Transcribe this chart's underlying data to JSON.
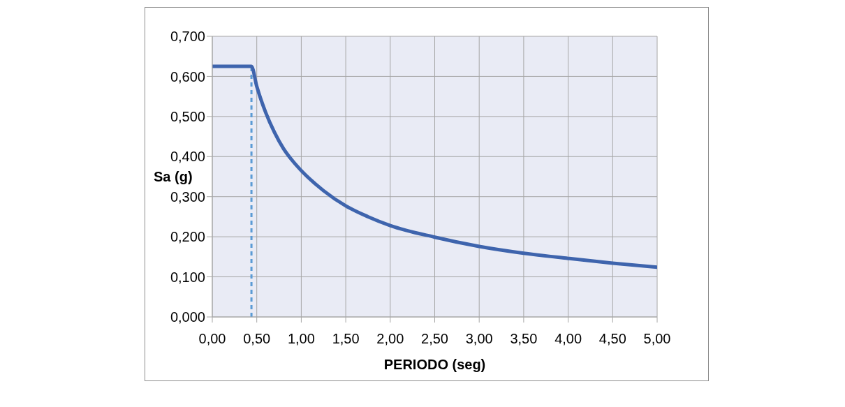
{
  "chart_data": {
    "type": "line",
    "xlabel": "PERIODO (seg)",
    "ylabel": "Sa (g)",
    "x": [
      0,
      0.44,
      0.5,
      0.6,
      0.7,
      0.8,
      0.9,
      1.0,
      1.25,
      1.5,
      1.75,
      2.0,
      2.5,
      3.0,
      3.5,
      4.0,
      4.5,
      5.0
    ],
    "series": [
      {
        "color": "#3e64ad",
        "values": [
          0.625,
          0.625,
          0.575,
          0.51,
          0.46,
          0.42,
          0.39,
          0.365,
          0.315,
          0.277,
          0.25,
          0.228,
          0.199,
          0.176,
          0.159,
          0.146,
          0.134,
          0.124
        ]
      }
    ],
    "xlim": [
      0,
      5
    ],
    "xticks": [
      {
        "value": 0,
        "label": "0,00"
      },
      {
        "value": 0.5,
        "label": "0,50"
      },
      {
        "value": 1,
        "label": "1,00"
      },
      {
        "value": 1.5,
        "label": "1,50"
      },
      {
        "value": 2,
        "label": "2,00"
      },
      {
        "value": 2.5,
        "label": "2,50"
      },
      {
        "value": 3,
        "label": "3,00"
      },
      {
        "value": 3.5,
        "label": "3,50"
      },
      {
        "value": 4,
        "label": "4,00"
      },
      {
        "value": 4.5,
        "label": "4,50"
      },
      {
        "value": 5,
        "label": "5,00"
      }
    ],
    "ylim": [
      0,
      0.7
    ],
    "yticks": [
      {
        "value": 0,
        "label": "0,000"
      },
      {
        "value": 0.1,
        "label": "0,100"
      },
      {
        "value": 0.2,
        "label": "0,200"
      },
      {
        "value": 0.3,
        "label": "0,300"
      },
      {
        "value": 0.4,
        "label": "0,400"
      },
      {
        "value": 0.5,
        "label": "0,500"
      },
      {
        "value": 0.6,
        "label": "0,600"
      },
      {
        "value": 0.7,
        "label": "0,700"
      }
    ],
    "ref_lines": [
      {
        "axis": "x",
        "value": 0.44,
        "color": "#5b9bd5",
        "line_style": "dashed"
      }
    ],
    "grid": true,
    "marker": "none",
    "line_style": "solid"
  }
}
